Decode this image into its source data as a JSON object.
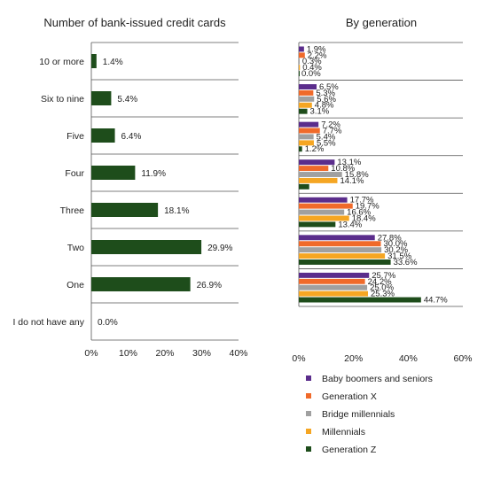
{
  "chart_data": [
    {
      "type": "bar",
      "orientation": "horizontal",
      "title": "Number of bank-issued credit cards",
      "categories": [
        "10 or more",
        "Six to nine",
        "Five",
        "Four",
        "Three",
        "Two",
        "One",
        "I do not have any"
      ],
      "values": [
        1.4,
        5.4,
        6.4,
        11.9,
        18.1,
        29.9,
        26.9,
        0.0
      ],
      "value_labels": [
        "1.4%",
        "5.4%",
        "6.4%",
        "11.9%",
        "18.1%",
        "29.9%",
        "26.9%",
        "0.0%"
      ],
      "xlim": [
        0,
        40
      ],
      "xticks": [
        "0%",
        "10%",
        "20%",
        "30%",
        "40%"
      ],
      "color": "#1e4d1b",
      "grid": "horizontal category separators"
    },
    {
      "type": "bar",
      "orientation": "horizontal",
      "title": "By generation",
      "group_count": 7,
      "series": [
        {
          "name": "Baby boomers and seniors",
          "color": "#5b2d8c",
          "values": [
            1.9,
            6.5,
            7.2,
            13.1,
            17.7,
            27.8,
            25.7
          ],
          "labels": [
            "1.9%",
            "6.5%",
            "7.2%",
            "13.1%",
            "17.7%",
            "27.8%",
            "25.7%"
          ]
        },
        {
          "name": "Generation X",
          "color": "#f06a2a",
          "values": [
            2.2,
            5.3,
            7.7,
            10.8,
            19.7,
            30.0,
            24.2
          ],
          "labels": [
            "2.2%",
            "5.3%",
            "7.7%",
            "10.8%",
            "19.7%",
            "30.0%",
            "24.2%"
          ]
        },
        {
          "name": "Bridge millennials",
          "color": "#a0a0a0",
          "values": [
            0.3,
            5.6,
            5.4,
            15.8,
            16.6,
            30.2,
            25.0
          ],
          "labels": [
            "0.3%",
            "5.6%",
            "5.4%",
            "15.8%",
            "16.6%",
            "30.2%",
            "25.0%"
          ]
        },
        {
          "name": "Millennials",
          "color": "#f5a623",
          "values": [
            0.4,
            4.8,
            5.5,
            14.1,
            18.4,
            31.5,
            25.3
          ],
          "labels": [
            "0.4%",
            "4.8%",
            "5.5%",
            "14.1%",
            "18.4%",
            "31.5%",
            "25.3%"
          ]
        },
        {
          "name": "Generation Z",
          "color": "#1e4d1b",
          "values": [
            0.0,
            3.1,
            1.2,
            3.8,
            13.4,
            33.6,
            44.7
          ],
          "labels": [
            "0.0%",
            "3.1%",
            "1.2%",
            "",
            "13.4%",
            "33.6%",
            "44.7%"
          ]
        }
      ],
      "xlim": [
        0,
        60
      ],
      "xticks": [
        "0%",
        "20%",
        "40%",
        "60%"
      ],
      "legend": "bottom"
    }
  ]
}
